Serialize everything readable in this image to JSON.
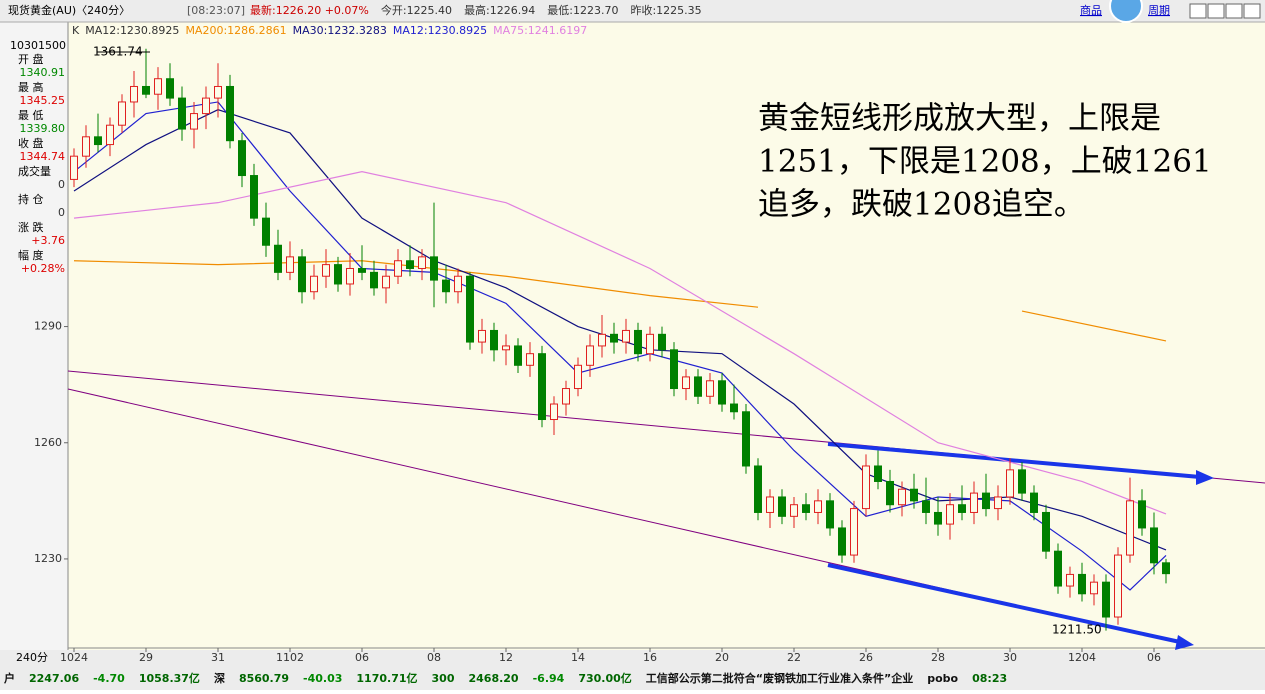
{
  "header": {
    "title": "现货黄金(AU)〈240分〉",
    "time": "[08:23:07]",
    "quotes": [
      "最新:1226.20 +0.07%",
      "今开:1225.40",
      "最高:1226.94",
      "最低:1223.70",
      "昨收:1225.35"
    ],
    "links": [
      "商品",
      "周期"
    ]
  },
  "side_panel": {
    "date": "10301500",
    "fields": [
      {
        "label": "开 盘",
        "value": "1340.91"
      },
      {
        "label": "最 高",
        "value": "1345.25"
      },
      {
        "label": "最 低",
        "value": "1339.80"
      },
      {
        "label": "收 盘",
        "value": "1344.74"
      },
      {
        "label": "成交量",
        "value": "0"
      },
      {
        "label": "持 仓",
        "value": "0"
      },
      {
        "label": "涨 跌",
        "value": "+3.76"
      },
      {
        "label": "幅 度",
        "value": "+0.28%"
      }
    ]
  },
  "footer": {
    "period": "240分",
    "ticker": [
      "户",
      "2247.06",
      "-4.70",
      "1058.37亿",
      "深",
      "8560.79",
      "-40.03",
      "1170.71亿",
      "300",
      "2468.20",
      "-6.94",
      "730.00亿",
      "工信部公示第二批符合“废钢铁加工行业准入条件”企业",
      "pobo",
      "08:23"
    ]
  },
  "chart_data": {
    "type": "candlestick",
    "legend_prefix": [
      "K",
      "MA12:1230.8925"
    ],
    "annotation": [
      "黄金短线形成放大型，上限是",
      "1251，下限是1208，上破1261",
      "追多，跌破1208追空。"
    ],
    "high_label": "1361.74",
    "low_label": "1211.50",
    "ylim": [
      1207,
      1364
    ],
    "yticks": [
      1230,
      1260,
      1290
    ],
    "up_color": "#e02020",
    "down_color": "#008000",
    "categories": [
      "1024",
      null,
      null,
      null,
      null,
      null,
      "29",
      null,
      null,
      null,
      null,
      null,
      "31",
      null,
      null,
      null,
      null,
      null,
      "1102",
      null,
      null,
      null,
      null,
      null,
      "06",
      null,
      null,
      null,
      null,
      null,
      "08",
      null,
      null,
      null,
      null,
      null,
      "12",
      null,
      null,
      null,
      null,
      null,
      "14",
      null,
      null,
      null,
      null,
      null,
      "16",
      null,
      null,
      null,
      null,
      null,
      "20",
      null,
      null,
      null,
      null,
      null,
      "22",
      null,
      null,
      null,
      null,
      null,
      "26",
      null,
      null,
      null,
      null,
      null,
      "28",
      null,
      null,
      null,
      null,
      null,
      "30",
      null,
      null,
      null,
      null,
      null,
      "1204",
      null,
      null,
      null,
      null,
      null,
      "06",
      null
    ],
    "ohlc": [
      [
        1328,
        1336,
        1326,
        1334
      ],
      [
        1334,
        1342,
        1331,
        1339
      ],
      [
        1339,
        1345,
        1335,
        1337
      ],
      [
        1337,
        1344,
        1334,
        1342
      ],
      [
        1342,
        1350,
        1340,
        1348
      ],
      [
        1348,
        1356,
        1344,
        1352
      ],
      [
        1352,
        1361.74,
        1349,
        1350
      ],
      [
        1350,
        1357,
        1346,
        1354
      ],
      [
        1354,
        1358,
        1347,
        1349
      ],
      [
        1349,
        1352,
        1338,
        1341
      ],
      [
        1341,
        1348,
        1336,
        1345
      ],
      [
        1345,
        1352,
        1341,
        1349
      ],
      [
        1349,
        1358,
        1344,
        1352
      ],
      [
        1352,
        1355,
        1336,
        1338
      ],
      [
        1338,
        1340,
        1326,
        1329
      ],
      [
        1329,
        1332,
        1316,
        1318
      ],
      [
        1318,
        1322,
        1308,
        1311
      ],
      [
        1311,
        1315,
        1302,
        1304
      ],
      [
        1304,
        1312,
        1302,
        1308
      ],
      [
        1308,
        1310,
        1296,
        1299
      ],
      [
        1299,
        1306,
        1297,
        1303
      ],
      [
        1303,
        1310,
        1300,
        1306
      ],
      [
        1306,
        1308,
        1299,
        1301
      ],
      [
        1301,
        1309,
        1298,
        1305
      ],
      [
        1305,
        1311,
        1302,
        1304
      ],
      [
        1304,
        1307,
        1298,
        1300
      ],
      [
        1300,
        1306,
        1296,
        1303
      ],
      [
        1303,
        1310,
        1301,
        1307
      ],
      [
        1307,
        1311,
        1303,
        1305
      ],
      [
        1305,
        1310,
        1302,
        1308
      ],
      [
        1308,
        1322,
        1295,
        1302
      ],
      [
        1302,
        1306,
        1296,
        1299
      ],
      [
        1299,
        1305,
        1296,
        1303
      ],
      [
        1303,
        1304,
        1284,
        1286
      ],
      [
        1286,
        1292,
        1283,
        1289
      ],
      [
        1289,
        1291,
        1281,
        1284
      ],
      [
        1284,
        1288,
        1280,
        1285
      ],
      [
        1285,
        1287,
        1278,
        1280
      ],
      [
        1280,
        1286,
        1277,
        1283
      ],
      [
        1283,
        1285,
        1264,
        1266
      ],
      [
        1266,
        1272,
        1262,
        1270
      ],
      [
        1270,
        1276,
        1267,
        1274
      ],
      [
        1274,
        1282,
        1272,
        1280
      ],
      [
        1280,
        1288,
        1277,
        1285
      ],
      [
        1285,
        1293,
        1282,
        1288
      ],
      [
        1288,
        1291,
        1283,
        1286
      ],
      [
        1286,
        1292,
        1283,
        1289
      ],
      [
        1289,
        1291,
        1281,
        1283
      ],
      [
        1283,
        1290,
        1281,
        1288
      ],
      [
        1288,
        1290,
        1282,
        1284
      ],
      [
        1284,
        1286,
        1272,
        1274
      ],
      [
        1274,
        1279,
        1271,
        1277
      ],
      [
        1277,
        1279,
        1270,
        1272
      ],
      [
        1272,
        1278,
        1270,
        1276
      ],
      [
        1276,
        1278,
        1268,
        1270
      ],
      [
        1270,
        1275,
        1266,
        1268
      ],
      [
        1268,
        1270,
        1252,
        1254
      ],
      [
        1254,
        1256,
        1240,
        1242
      ],
      [
        1242,
        1248,
        1238,
        1246
      ],
      [
        1246,
        1248,
        1239,
        1241
      ],
      [
        1241,
        1246,
        1238,
        1244
      ],
      [
        1244,
        1247,
        1240,
        1242
      ],
      [
        1242,
        1248,
        1239,
        1245
      ],
      [
        1245,
        1247,
        1236,
        1238
      ],
      [
        1238,
        1240,
        1229,
        1231
      ],
      [
        1231,
        1245,
        1229,
        1243
      ],
      [
        1243,
        1257,
        1241,
        1254
      ],
      [
        1254,
        1258,
        1248,
        1250
      ],
      [
        1250,
        1253,
        1242,
        1244
      ],
      [
        1244,
        1250,
        1241,
        1248
      ],
      [
        1248,
        1252,
        1243,
        1245
      ],
      [
        1245,
        1251,
        1239,
        1242
      ],
      [
        1242,
        1246,
        1236,
        1239
      ],
      [
        1239,
        1247,
        1235,
        1244
      ],
      [
        1244,
        1249,
        1240,
        1242
      ],
      [
        1242,
        1250,
        1239,
        1247
      ],
      [
        1247,
        1252,
        1241,
        1243
      ],
      [
        1243,
        1249,
        1240,
        1246
      ],
      [
        1246,
        1256,
        1244,
        1253
      ],
      [
        1253,
        1255,
        1245,
        1247
      ],
      [
        1247,
        1249,
        1240,
        1242
      ],
      [
        1242,
        1244,
        1230,
        1232
      ],
      [
        1232,
        1234,
        1221,
        1223
      ],
      [
        1223,
        1228,
        1220,
        1226
      ],
      [
        1226,
        1229,
        1219,
        1221
      ],
      [
        1221,
        1226,
        1218,
        1224
      ],
      [
        1224,
        1226,
        1211.5,
        1215
      ],
      [
        1215,
        1233,
        1213,
        1231
      ],
      [
        1231,
        1251,
        1229,
        1245
      ],
      [
        1245,
        1248,
        1236,
        1238
      ],
      [
        1238,
        1242,
        1226,
        1229
      ],
      [
        1229,
        1230,
        1223.7,
        1226.2
      ]
    ],
    "ma": [
      {
        "name": "MA200:1286.2861",
        "color": "#f08c00",
        "x": [
          0,
          12,
          24,
          36,
          48,
          57,
          68,
          79,
          91
        ],
        "values": [
          1307,
          1306,
          1307,
          1303,
          1298,
          1295,
          null,
          1294,
          1286.29
        ]
      },
      {
        "name": "MA30:1232.3283",
        "color": "#101080",
        "x": [
          0,
          6,
          12,
          18,
          24,
          30,
          36,
          42,
          48,
          54,
          60,
          66,
          72,
          78,
          84,
          91
        ],
        "values": [
          1325,
          1337,
          1346,
          1340,
          1318,
          1307,
          1300,
          1290,
          1284,
          1283,
          1270,
          1252,
          1245,
          1246,
          1241,
          1232.33
        ]
      },
      {
        "name": "MA12:1230.8925",
        "color": "#2020d0",
        "x": [
          0,
          6,
          12,
          18,
          24,
          30,
          36,
          42,
          48,
          54,
          60,
          66,
          72,
          78,
          84,
          88,
          91
        ],
        "values": [
          1330,
          1345,
          1348,
          1325,
          1305,
          1304,
          1296,
          1278,
          1283,
          1278,
          1258,
          1241,
          1246,
          1245,
          1232,
          1222,
          1230.89
        ]
      },
      {
        "name": "MA75:1241.6197",
        "color": "#e080e0",
        "x": [
          0,
          12,
          24,
          36,
          48,
          60,
          72,
          84,
          91
        ],
        "values": [
          1318,
          1322,
          1330,
          1322,
          1305,
          1283,
          1260,
          1250,
          1241.62
        ]
      }
    ]
  }
}
